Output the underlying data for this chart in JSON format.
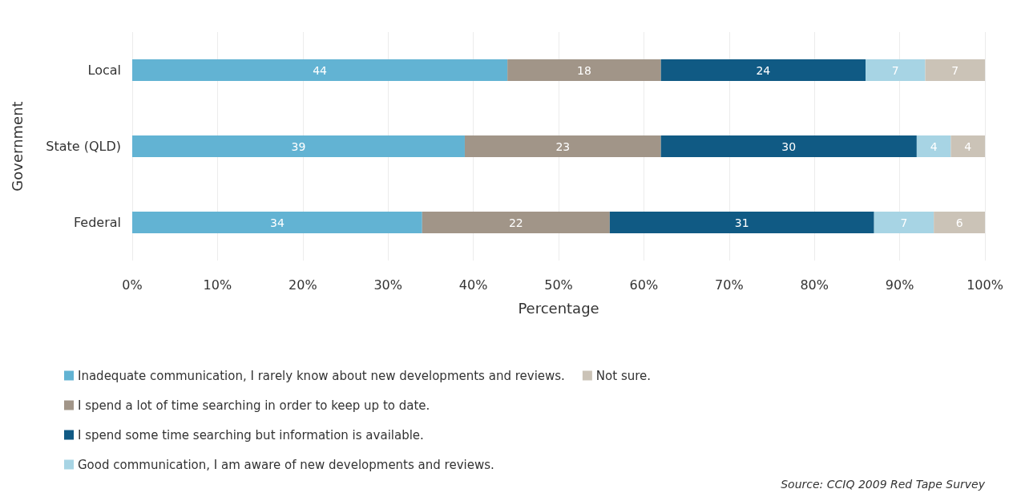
{
  "chart_data": {
    "type": "bar",
    "orientation": "horizontal",
    "stacked": true,
    "xlabel": "Percentage",
    "ylabel": "Government",
    "categories": [
      "Local",
      "State (QLD)",
      "Federal"
    ],
    "series": [
      {
        "name": "Inadequate communication, I rarely know about new developments and reviews.",
        "color": "#62b3d3",
        "values": [
          44,
          39,
          34
        ]
      },
      {
        "name": "I spend a lot of time searching in order to keep up to date.",
        "color": "#a19588",
        "values": [
          18,
          23,
          22
        ]
      },
      {
        "name": "I spend some time searching but information is available.",
        "color": "#105a84",
        "values": [
          24,
          30,
          31
        ]
      },
      {
        "name": "Good communication, I am aware of new developments and reviews.",
        "color": "#a7d4e4",
        "values": [
          7,
          4,
          7
        ]
      },
      {
        "name": "Not sure.",
        "color": "#cbc3b7",
        "values": [
          7,
          4,
          6
        ]
      }
    ],
    "xlim": [
      0,
      100
    ],
    "xticks": [
      {
        "value": 0,
        "label": "0%"
      },
      {
        "value": 10,
        "label": "10%"
      },
      {
        "value": 20,
        "label": "20%"
      },
      {
        "value": 30,
        "label": "30%"
      },
      {
        "value": 40,
        "label": "40%"
      },
      {
        "value": 50,
        "label": "50%"
      },
      {
        "value": 60,
        "label": "60%"
      },
      {
        "value": 70,
        "label": "70%"
      },
      {
        "value": 80,
        "label": "80%"
      },
      {
        "value": 90,
        "label": "90%"
      },
      {
        "value": 100,
        "label": "100%"
      }
    ],
    "grid": "x",
    "legend": "bottom left",
    "data_labels": true,
    "annotations": [
      "Source: CCIQ 2009 Red Tape Survey"
    ]
  }
}
